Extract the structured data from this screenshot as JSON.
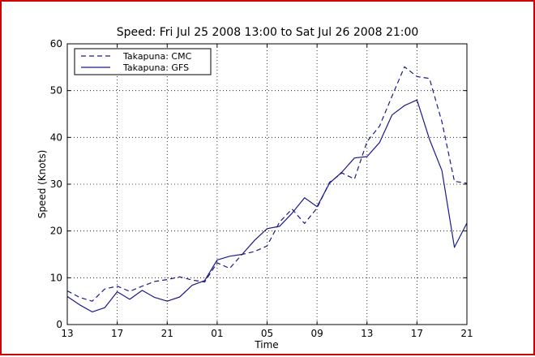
{
  "chart_data": {
    "type": "line",
    "title": "Speed: Fri Jul 25 2008 13:00 to Sat Jul 26 2008 21:00",
    "xlabel": "Time",
    "ylabel": "Speed (Knots)",
    "x_tick_labels": [
      "13",
      "17",
      "21",
      "01",
      "05",
      "09",
      "13",
      "17",
      "21"
    ],
    "x_hours": [
      0,
      1,
      2,
      3,
      4,
      5,
      6,
      7,
      8,
      9,
      10,
      11,
      12,
      13,
      14,
      15,
      16,
      17,
      18,
      19,
      20,
      21,
      22,
      23,
      24,
      25,
      26,
      27,
      28,
      29,
      30,
      31,
      32
    ],
    "xlim": [
      0,
      32
    ],
    "ylim": [
      0,
      60
    ],
    "y_ticks": [
      0,
      10,
      20,
      30,
      40,
      50,
      60
    ],
    "grid": true,
    "legend_position": "top-left",
    "series": [
      {
        "name": "Takapuna: CMC",
        "style": "dashed",
        "color": "#1a1a8c",
        "values": [
          7.2,
          5.8,
          5,
          7.6,
          8.2,
          7.1,
          8.2,
          9.2,
          9.6,
          10.2,
          9.5,
          9.1,
          13.2,
          12,
          15,
          15.6,
          16.8,
          21.9,
          24.7,
          21.6,
          24.9,
          30.4,
          32.4,
          31.1,
          39.1,
          42.4,
          48.8,
          55.1,
          53,
          52.6,
          43.3,
          30.6,
          30.2
        ]
      },
      {
        "name": "Takapuna: GFS",
        "style": "solid",
        "color": "#1a1a8c",
        "values": [
          6,
          4.2,
          2.7,
          3.6,
          7,
          5.4,
          7.3,
          5.8,
          5,
          5.9,
          8.4,
          9.4,
          13.8,
          14.6,
          15,
          18,
          20.5,
          21,
          23.8,
          27.1,
          25.2,
          30.2,
          32.6,
          35.6,
          35.9,
          38.9,
          44.8,
          46.8,
          48,
          39.6,
          32.9,
          16.5,
          21.7
        ]
      }
    ]
  }
}
